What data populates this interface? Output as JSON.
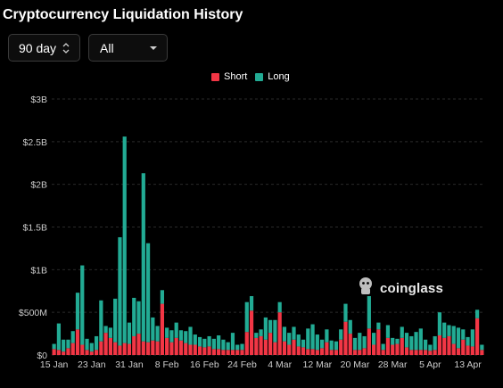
{
  "title": "Cryptocurrency Liquidation History",
  "controls": {
    "range_value": "90 day",
    "range_icon": "updown-chevron-icon",
    "coin_value": "All",
    "coin_icon": "caret-down-icon"
  },
  "watermark": {
    "text": "coinglass",
    "icon": "coinglass-logo-icon"
  },
  "colors": {
    "short": "#f23645",
    "long": "#22ab94",
    "grid": "#2a2a2a",
    "axis_text": "#cccccc"
  },
  "chart_data": {
    "type": "bar",
    "stacked": true,
    "legend": [
      "Short",
      "Long"
    ],
    "legend_position": "top-center",
    "grid": true,
    "ylim": [
      0,
      3000
    ],
    "yunit": "M",
    "y_ticks": [
      {
        "value": 0,
        "label": "$0"
      },
      {
        "value": 500,
        "label": "$500M"
      },
      {
        "value": 1000,
        "label": "$1B"
      },
      {
        "value": 1500,
        "label": "$1.5B"
      },
      {
        "value": 2000,
        "label": "$2B"
      },
      {
        "value": 2500,
        "label": "$2.5B"
      },
      {
        "value": 3000,
        "label": "$3B"
      }
    ],
    "x_ticks": [
      {
        "index": 0,
        "label": "15 Jan"
      },
      {
        "index": 8,
        "label": "23 Jan"
      },
      {
        "index": 16,
        "label": "31 Jan"
      },
      {
        "index": 24,
        "label": "8 Feb"
      },
      {
        "index": 32,
        "label": "16 Feb"
      },
      {
        "index": 40,
        "label": "24 Feb"
      },
      {
        "index": 48,
        "label": "4 Mar"
      },
      {
        "index": 56,
        "label": "12 Mar"
      },
      {
        "index": 64,
        "label": "20 Mar"
      },
      {
        "index": 72,
        "label": "28 Mar"
      },
      {
        "index": 80,
        "label": "5 Apr"
      },
      {
        "index": 88,
        "label": "13 Apr"
      }
    ],
    "series": [
      {
        "name": "Short",
        "values": [
          70,
          60,
          40,
          80,
          140,
          300,
          120,
          60,
          40,
          60,
          160,
          260,
          200,
          150,
          110,
          140,
          130,
          220,
          250,
          160,
          150,
          170,
          160,
          600,
          200,
          150,
          200,
          170,
          140,
          120,
          120,
          100,
          90,
          100,
          70,
          70,
          60,
          60,
          60,
          60,
          60,
          270,
          520,
          200,
          220,
          180,
          260,
          150,
          500,
          160,
          120,
          180,
          100,
          90,
          70,
          70,
          60,
          80,
          150,
          60,
          60,
          180,
          390,
          250,
          60,
          60,
          80,
          310,
          120,
          300,
          60,
          200,
          120,
          130,
          200,
          90,
          60,
          60,
          60,
          60,
          50,
          60,
          230,
          200,
          220,
          130,
          80,
          180,
          110,
          100,
          430,
          60
        ]
      },
      {
        "name": "Long",
        "values": [
          60,
          310,
          140,
          100,
          140,
          430,
          930,
          130,
          100,
          160,
          480,
          80,
          120,
          510,
          1270,
          2420,
          250,
          450,
          380,
          1970,
          1160,
          270,
          180,
          160,
          120,
          140,
          180,
          120,
          140,
          210,
          120,
          110,
          100,
          120,
          120,
          160,
          120,
          90,
          200,
          60,
          70,
          350,
          170,
          60,
          80,
          260,
          150,
          260,
          120,
          170,
          140,
          150,
          140,
          90,
          240,
          290,
          180,
          100,
          150,
          110,
          100,
          120,
          210,
          160,
          140,
          200,
          140,
          380,
          140,
          80,
          70,
          150,
          80,
          60,
          130,
          170,
          160,
          210,
          250,
          120,
          70,
          160,
          270,
          180,
          130,
          210,
          240,
          120,
          100,
          200,
          100,
          60
        ]
      }
    ]
  }
}
